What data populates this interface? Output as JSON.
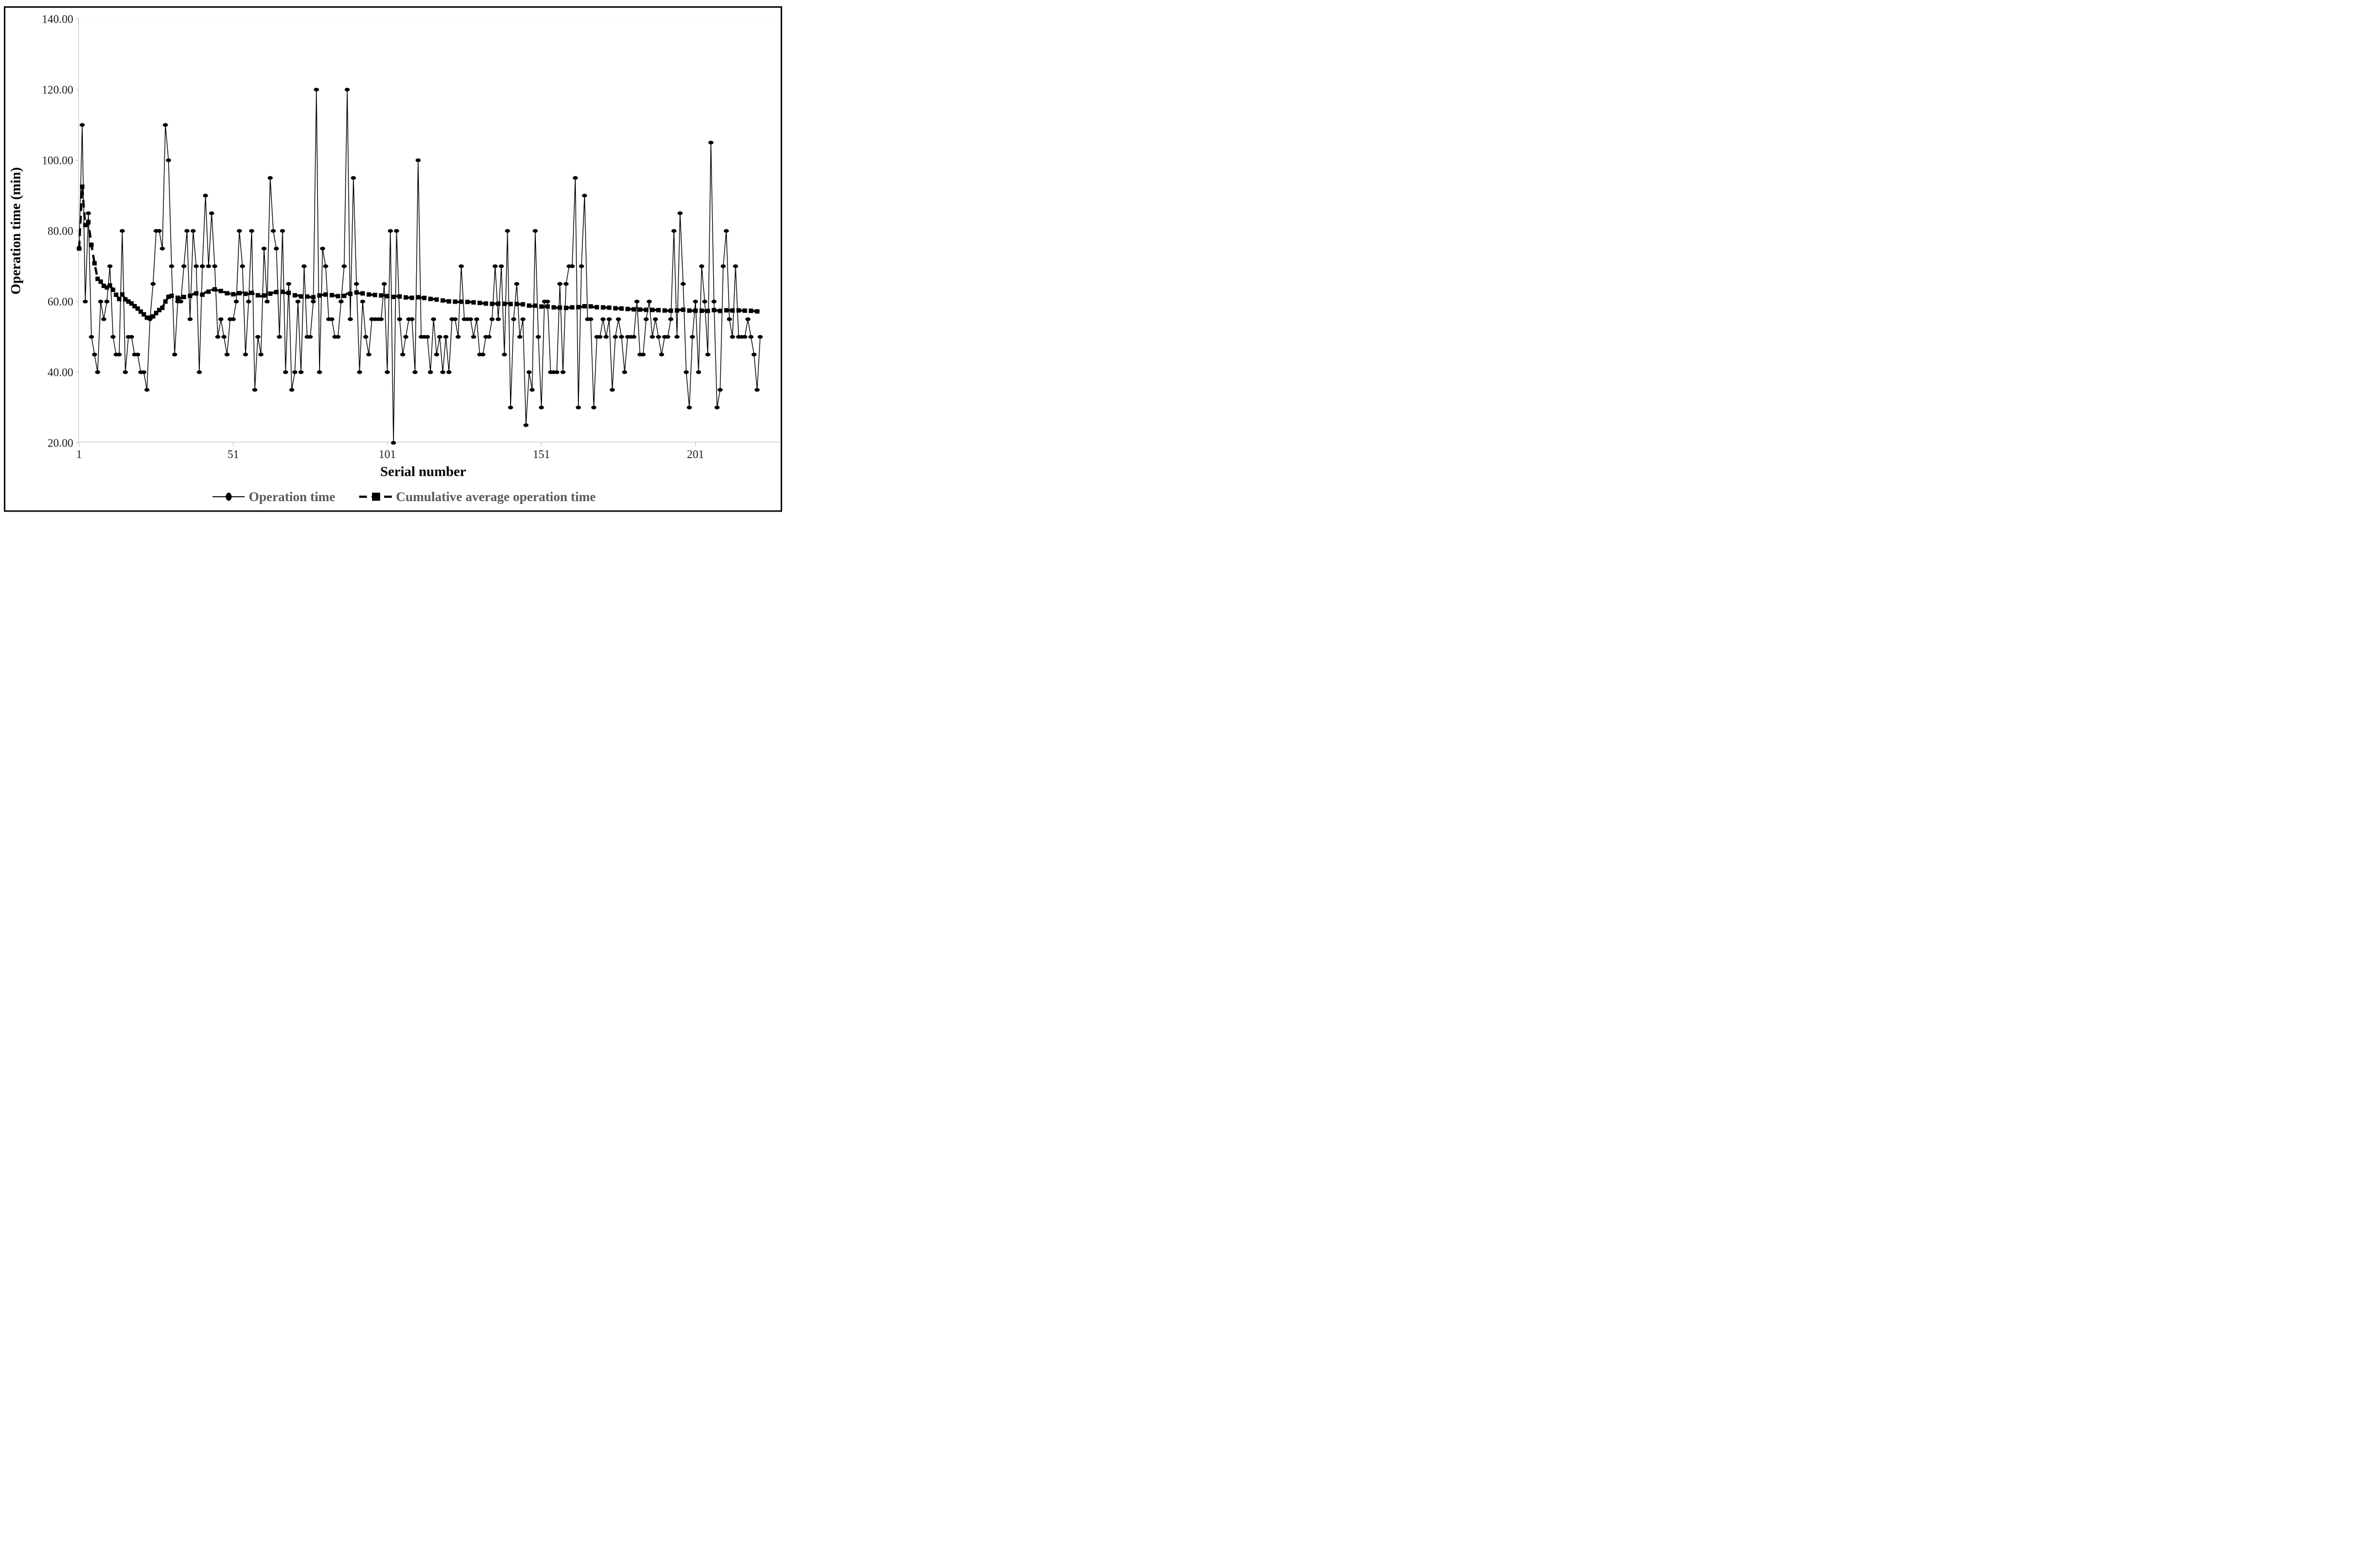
{
  "figure": {
    "background": "#ffffff",
    "border_color": "#000000",
    "series_color": "#000000",
    "axis_line_color": "#bfbfbf",
    "tick_label_color": "#1a1a1a",
    "legend_text_color": "#595959"
  },
  "y_axis": {
    "title": "Operation time (min)",
    "tick_labels": [
      "140.00",
      "120.00",
      "100.00",
      "80.00",
      "60.00",
      "40.00",
      "20.00"
    ],
    "tick_values": [
      140,
      120,
      100,
      80,
      60,
      40,
      20
    ]
  },
  "x_axis": {
    "title": "Serial number",
    "tick_labels": [
      "1",
      "51",
      "101",
      "151",
      "201"
    ],
    "tick_values": [
      1,
      51,
      101,
      151,
      201
    ]
  },
  "legend": [
    {
      "label": "Operation time",
      "marker": "circle-icon",
      "line_style": "solid"
    },
    {
      "label": "Cumulative average operation time",
      "marker": "square-icon",
      "line_style": "dashed"
    }
  ],
  "chart_data": {
    "type": "line",
    "title": "",
    "xlabel": "Serial number",
    "ylabel": "Operation time (min)",
    "x_start": 1,
    "x_end": 222,
    "ylim": [
      20,
      140
    ],
    "grid": "off",
    "legend_position": "bottom-center",
    "series": [
      {
        "name": "Operation time",
        "marker": "circle",
        "line_style": "solid",
        "values": [
          75,
          110,
          60,
          85,
          50,
          45,
          40,
          60,
          55,
          60,
          70,
          50,
          45,
          45,
          80,
          40,
          50,
          50,
          45,
          45,
          40,
          40,
          35,
          55,
          65,
          80,
          80,
          75,
          110,
          100,
          70,
          45,
          60,
          60,
          70,
          80,
          55,
          80,
          70,
          40,
          70,
          90,
          70,
          85,
          70,
          50,
          55,
          50,
          45,
          55,
          55,
          60,
          80,
          70,
          45,
          60,
          80,
          35,
          50,
          45,
          75,
          60,
          95,
          80,
          75,
          50,
          80,
          40,
          65,
          35,
          40,
          60,
          40,
          70,
          50,
          50,
          60,
          120,
          40,
          75,
          70,
          55,
          55,
          50,
          50,
          60,
          70,
          120,
          55,
          95,
          65,
          40,
          60,
          50,
          45,
          55,
          55,
          55,
          55,
          65,
          40,
          80,
          20,
          80,
          55,
          45,
          50,
          55,
          55,
          40,
          100,
          50,
          50,
          50,
          40,
          55,
          45,
          50,
          40,
          50,
          40,
          55,
          55,
          50,
          70,
          55,
          55,
          55,
          50,
          55,
          45,
          45,
          50,
          50,
          55,
          70,
          55,
          70,
          45,
          80,
          30,
          55,
          65,
          50,
          55,
          25,
          40,
          35,
          80,
          50,
          30,
          60,
          60,
          40,
          40,
          40,
          65,
          40,
          65,
          70,
          70,
          95,
          30,
          70,
          90,
          55,
          55,
          30,
          50,
          50,
          55,
          50,
          55,
          35,
          50,
          55,
          50,
          40,
          50,
          50,
          50,
          60,
          45,
          45,
          55,
          60,
          50,
          55,
          50,
          45,
          50,
          50,
          55,
          80,
          50,
          85,
          65,
          40,
          30,
          50,
          60,
          40,
          70,
          60,
          45,
          105,
          60,
          30,
          35,
          70,
          80,
          55,
          50,
          70,
          50,
          50,
          50,
          55,
          50,
          45,
          35,
          50
        ]
      },
      {
        "name": "Cumulative average operation time",
        "marker": "square",
        "line_style": "dashed",
        "derivation": "running cumulative mean of the Operation time series, starts at 75.00 and ends near 57.10"
      }
    ]
  }
}
